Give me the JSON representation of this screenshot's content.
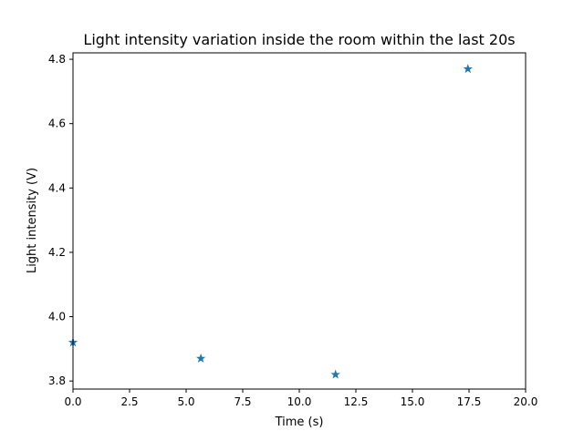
{
  "chart_data": {
    "type": "scatter",
    "title": "Light intensity variation inside the room within the last 20s",
    "xlabel": "Time (s)",
    "ylabel": "Light intensity (V)",
    "xlim": [
      0,
      20
    ],
    "ylim": [
      3.775,
      4.82
    ],
    "xticks": [
      "0.0",
      "2.5",
      "5.0",
      "7.5",
      "10.0",
      "12.5",
      "15.0",
      "17.5",
      "20.0"
    ],
    "yticks": [
      "3.8",
      "4.0",
      "4.2",
      "4.4",
      "4.6",
      "4.8"
    ],
    "marker": "star",
    "color": "#1f77b4",
    "grid": false,
    "points": [
      {
        "x": 0.0,
        "y": 3.92
      },
      {
        "x": 5.65,
        "y": 3.87
      },
      {
        "x": 11.6,
        "y": 3.82
      },
      {
        "x": 17.45,
        "y": 4.77
      }
    ]
  }
}
